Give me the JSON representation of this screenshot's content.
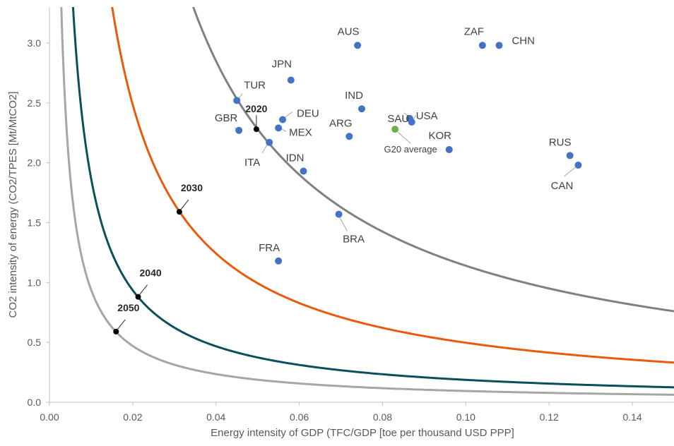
{
  "chart_data": {
    "type": "scatter",
    "title": "",
    "xlabel": "Energy intensity of GDP (TFC/GDP [toe per thousand USD PPP]",
    "ylabel": "CO2 intensity of energy (CO2/TPES [Mt/MtCO2]",
    "xlim": [
      0,
      0.15
    ],
    "ylim": [
      0,
      3.3
    ],
    "x_ticks": [
      "0.00",
      "0.02",
      "0.04",
      "0.06",
      "0.08",
      "0.10",
      "0.12",
      "0.14"
    ],
    "y_ticks": [
      "0.0",
      "0.5",
      "1.0",
      "1.5",
      "2.0",
      "2.5",
      "3.0"
    ],
    "grid": false,
    "countries": [
      {
        "name": "AUS",
        "x": 0.074,
        "y": 2.98
      },
      {
        "name": "ZAF",
        "x": 0.104,
        "y": 2.98
      },
      {
        "name": "CHN",
        "x": 0.108,
        "y": 2.98
      },
      {
        "name": "JPN",
        "x": 0.058,
        "y": 2.69
      },
      {
        "name": "TUR",
        "x": 0.045,
        "y": 2.52
      },
      {
        "name": "IND",
        "x": 0.075,
        "y": 2.45
      },
      {
        "name": "SAU",
        "x": 0.0865,
        "y": 2.37
      },
      {
        "name": "USA",
        "x": 0.087,
        "y": 2.34
      },
      {
        "name": "DEU",
        "x": 0.056,
        "y": 2.36
      },
      {
        "name": "GBR",
        "x": 0.0455,
        "y": 2.27
      },
      {
        "name": "MEX",
        "x": 0.055,
        "y": 2.29
      },
      {
        "name": "ARG",
        "x": 0.072,
        "y": 2.22
      },
      {
        "name": "ITA",
        "x": 0.0528,
        "y": 2.17
      },
      {
        "name": "KOR",
        "x": 0.096,
        "y": 2.11
      },
      {
        "name": "RUS",
        "x": 0.125,
        "y": 2.06
      },
      {
        "name": "CAN",
        "x": 0.127,
        "y": 1.98
      },
      {
        "name": "IDN",
        "x": 0.061,
        "y": 1.93
      },
      {
        "name": "BRA",
        "x": 0.0695,
        "y": 1.57
      },
      {
        "name": "FRA",
        "x": 0.055,
        "y": 1.18
      }
    ],
    "average": {
      "name": "G20 average",
      "x": 0.083,
      "y": 2.28
    },
    "curves": [
      {
        "year": "2020",
        "k": 0.114,
        "color": "#808080",
        "x": 0.0497,
        "y": 2.28
      },
      {
        "year": "2030",
        "k": 0.0497,
        "color": "#ea5a0c",
        "x": 0.0312,
        "y": 1.59
      },
      {
        "year": "2040",
        "k": 0.0187,
        "color": "#0b4f5c",
        "x": 0.0213,
        "y": 0.88
      },
      {
        "year": "2050",
        "k": 0.0094,
        "color": "#a6a6a6",
        "x": 0.016,
        "y": 0.59
      }
    ],
    "colors": {
      "country": "#4472c4",
      "average": "#70ad47",
      "marker": "#000000",
      "axis": "#bfbfbf"
    }
  }
}
